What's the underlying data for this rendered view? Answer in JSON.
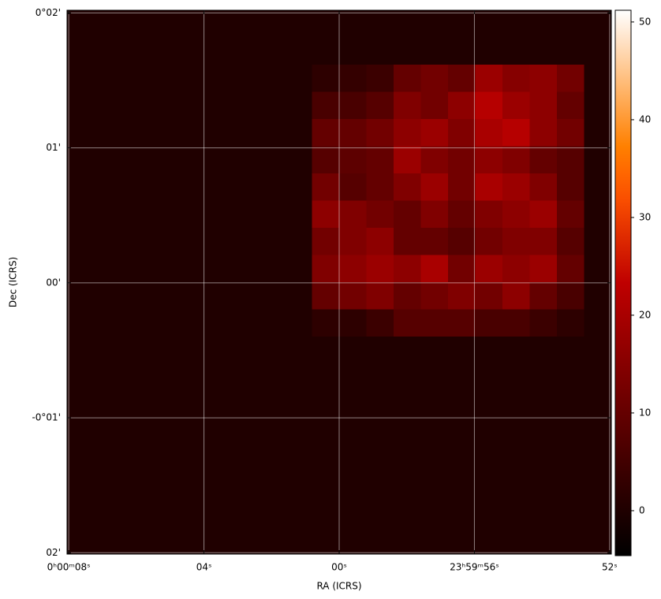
{
  "chart_data": {
    "type": "heatmap",
    "xlabel": "RA (ICRS)",
    "ylabel": "Dec (ICRS)",
    "xlim": [
      8.05,
      -8.05
    ],
    "ylim": [
      -2.01,
      2.02
    ],
    "xticks": [
      {
        "value": 8,
        "label": "0ʰ00ᵐ08ˢ"
      },
      {
        "value": 4,
        "label": "04ˢ"
      },
      {
        "value": 0,
        "label": "00ˢ"
      },
      {
        "value": -4,
        "label": "23ʰ59ᵐ56ˢ"
      },
      {
        "value": -8,
        "label": "52ˢ"
      }
    ],
    "yticks": [
      {
        "value": 2,
        "label": "0°02'"
      },
      {
        "value": 1,
        "label": "01'"
      },
      {
        "value": 0,
        "label": "00'"
      },
      {
        "value": -1,
        "label": "-0°01'"
      },
      {
        "value": -2,
        "label": "02'"
      }
    ],
    "grid": true,
    "colormap": "gist_heat",
    "clim": [
      -4.6,
      51.2
    ],
    "colorbar_ticks": [
      0,
      10,
      20,
      30,
      40,
      50
    ],
    "z": [
      [
        0,
        0,
        0,
        0,
        0,
        0,
        0,
        0,
        0,
        0,
        0,
        0,
        0,
        0,
        0,
        0,
        0,
        0,
        0,
        0
      ],
      [
        0,
        0,
        0,
        0,
        0,
        0,
        0,
        0,
        0,
        0,
        0,
        0,
        0,
        0,
        0,
        0,
        0,
        0,
        0,
        0
      ],
      [
        0,
        0,
        0,
        0,
        0,
        0,
        0,
        0,
        0,
        2,
        3,
        4,
        10,
        12,
        10,
        18,
        15,
        16,
        12,
        0
      ],
      [
        0,
        0,
        0,
        0,
        0,
        0,
        0,
        0,
        0,
        6,
        6,
        8,
        14,
        12,
        16,
        22,
        18,
        16,
        10,
        0
      ],
      [
        0,
        0,
        0,
        0,
        0,
        0,
        0,
        0,
        0,
        10,
        10,
        12,
        16,
        18,
        14,
        20,
        22,
        16,
        12,
        0
      ],
      [
        0,
        0,
        0,
        0,
        0,
        0,
        0,
        0,
        0,
        8,
        9,
        10,
        18,
        14,
        12,
        16,
        14,
        10,
        8,
        0
      ],
      [
        0,
        0,
        0,
        0,
        0,
        0,
        0,
        0,
        0,
        12,
        8,
        10,
        14,
        18,
        12,
        20,
        18,
        14,
        8,
        0
      ],
      [
        0,
        0,
        0,
        0,
        0,
        0,
        0,
        0,
        0,
        16,
        14,
        12,
        10,
        14,
        10,
        14,
        16,
        18,
        10,
        0
      ],
      [
        0,
        0,
        0,
        0,
        0,
        0,
        0,
        0,
        0,
        12,
        14,
        16,
        10,
        10,
        8,
        12,
        14,
        14,
        8,
        0
      ],
      [
        0,
        0,
        0,
        0,
        0,
        0,
        0,
        0,
        0,
        14,
        16,
        18,
        16,
        20,
        12,
        18,
        16,
        18,
        10,
        0
      ],
      [
        0,
        0,
        0,
        0,
        0,
        0,
        0,
        0,
        0,
        10,
        12,
        14,
        10,
        12,
        14,
        12,
        16,
        10,
        6,
        0
      ],
      [
        0,
        0,
        0,
        0,
        0,
        0,
        0,
        0,
        0,
        2,
        2,
        4,
        8,
        8,
        8,
        6,
        6,
        4,
        2,
        0
      ],
      [
        0,
        0,
        0,
        0,
        0,
        0,
        0,
        0,
        0,
        0,
        0,
        0,
        0,
        0,
        0,
        0,
        0,
        0,
        0,
        0
      ],
      [
        0,
        0,
        0,
        0,
        0,
        0,
        0,
        0,
        0,
        0,
        0,
        0,
        0,
        0,
        0,
        0,
        0,
        0,
        0,
        0
      ],
      [
        0,
        0,
        0,
        0,
        0,
        0,
        0,
        0,
        0,
        0,
        0,
        0,
        0,
        0,
        0,
        0,
        0,
        0,
        0,
        0
      ],
      [
        0,
        0,
        0,
        0,
        0,
        0,
        0,
        0,
        0,
        0,
        0,
        0,
        0,
        0,
        0,
        0,
        0,
        0,
        0,
        0
      ],
      [
        0,
        0,
        0,
        0,
        0,
        0,
        0,
        0,
        0,
        0,
        0,
        0,
        0,
        0,
        0,
        0,
        0,
        0,
        0,
        0
      ],
      [
        0,
        0,
        0,
        0,
        0,
        0,
        0,
        0,
        0,
        0,
        0,
        0,
        0,
        0,
        0,
        0,
        0,
        0,
        0,
        0
      ],
      [
        0,
        0,
        0,
        0,
        0,
        0,
        0,
        0,
        0,
        0,
        0,
        0,
        0,
        0,
        0,
        0,
        0,
        0,
        0,
        0
      ],
      [
        0,
        0,
        0,
        0,
        0,
        0,
        0,
        0,
        0,
        0,
        0,
        0,
        0,
        0,
        0,
        0,
        0,
        0,
        0,
        0
      ]
    ]
  }
}
